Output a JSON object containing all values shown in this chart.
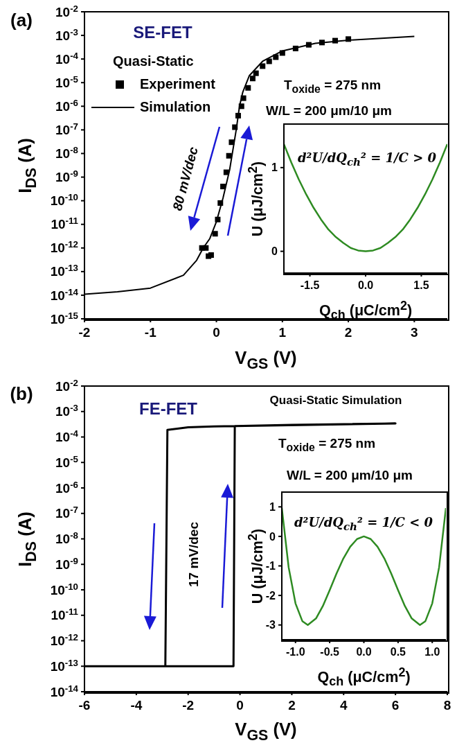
{
  "chart_data": [
    {
      "type": "line",
      "xlabel": "V$_{GS}$ (V)",
      "ylabel": "I$_{DS}$ (A)",
      "legend_title": "Quasi-Static",
      "legend": "top left",
      "log": "y",
      "annotations": [
        "(a)",
        "SE-FET",
        "T$_{oxide}$ = 275 nm",
        "W/L = 200 μm/10 μm",
        "80 mV/dec"
      ],
      "xlim": [
        -2,
        3.5
      ],
      "xticks": [
        -2,
        -1,
        0,
        1,
        2,
        3
      ],
      "ylim": [
        1e-15,
        0.01
      ],
      "yticks": [
        {
          "value": 1e-15,
          "label": "10$^{-15}$"
        },
        {
          "value": 1e-14,
          "label": "10$^{-14}$"
        },
        {
          "value": 1e-13,
          "label": "10$^{-13}$"
        },
        {
          "value": 1e-12,
          "label": "10$^{-12}$"
        },
        {
          "value": 1e-11,
          "label": "10$^{-11}$"
        },
        {
          "value": 1e-10,
          "label": "10$^{-10}$"
        },
        {
          "value": 1e-09,
          "label": "10$^{-9}$"
        },
        {
          "value": 1e-08,
          "label": "10$^{-8}$"
        },
        {
          "value": 1e-07,
          "label": "10$^{-7}$"
        },
        {
          "value": 1e-06,
          "label": "10$^{-6}$"
        },
        {
          "value": 1e-05,
          "label": "10$^{-5}$"
        },
        {
          "value": 0.0001,
          "label": "10$^{-4}$"
        },
        {
          "value": 0.001,
          "label": "10$^{-3}$"
        },
        {
          "value": 0.01,
          "label": "10$^{-2}$"
        }
      ],
      "series": [
        {
          "name": "Experiment",
          "type": "scatter",
          "marker": "square",
          "color": "#000000",
          "x": [
            -0.22,
            -0.16,
            -0.12,
            -0.08,
            -0.02,
            0.02,
            0.06,
            0.1,
            0.15,
            0.19,
            0.23,
            0.28,
            0.33,
            0.38,
            0.41,
            0.48,
            0.55,
            0.6,
            0.7,
            0.8,
            0.9,
            1.0,
            1.2,
            1.4,
            1.6,
            1.8,
            2.0
          ],
          "values": [
            1e-12,
            1e-12,
            4.5e-13,
            5e-13,
            4e-12,
            1.6e-11,
            8e-11,
            4e-10,
            1.6e-09,
            8e-09,
            3e-08,
            1.3e-07,
            4e-07,
            1e-06,
            2.2e-06,
            6e-06,
            1.5e-05,
            2.5e-05,
            5e-05,
            8e-05,
            0.00012,
            0.00018,
            0.00028,
            0.0004,
            0.0005,
            0.0006,
            0.0007
          ]
        },
        {
          "name": "Simulation",
          "marker": "none",
          "color": "#000000",
          "x": [
            -2,
            -1.5,
            -1,
            -0.5,
            -0.3,
            -0.2,
            -0.1,
            0,
            0.1,
            0.2,
            0.3,
            0.35,
            0.4,
            0.5,
            0.7,
            1,
            1.5,
            2,
            3
          ],
          "values": [
            1.1e-14,
            1.4e-14,
            2e-14,
            7e-14,
            3e-13,
            1e-12,
            2.5e-12,
            1.3e-11,
            1.3e-10,
            2e-09,
            1e-07,
            1e-06,
            4e-06,
            2e-05,
            8e-05,
            0.00022,
            0.00046,
            0.00063,
            0.00091
          ]
        }
      ]
    },
    {
      "type": "line",
      "xlabel": "Q$_{ch}$ (μC/cm$^{2}$)",
      "ylabel": "U (μJ/cm$^{2}$)",
      "annotations": [
        "d²U/dQ$_{ch}$² = 1/C > 0"
      ],
      "xlim": [
        -2.2,
        2.2
      ],
      "xticks": [
        -1.5,
        {
          "value": 0,
          "label": "0.0"
        },
        1.5
      ],
      "ylim": [
        -0.26,
        1.52
      ],
      "yticks": [
        0,
        1
      ],
      "series": [
        {
          "color": "#2e8b22",
          "x": [
            -2.2,
            -2.0,
            -1.8,
            -1.6,
            -1.4,
            -1.2,
            -1.0,
            -0.8,
            -0.6,
            -0.4,
            -0.2,
            0,
            0.2,
            0.4,
            0.6,
            0.8,
            1.0,
            1.2,
            1.4,
            1.6,
            1.8,
            2.0,
            2.2
          ],
          "values": [
            1.28,
            1.06,
            0.86,
            0.68,
            0.52,
            0.38,
            0.26,
            0.17,
            0.1,
            0.04,
            0.01,
            0,
            0.01,
            0.04,
            0.1,
            0.17,
            0.26,
            0.38,
            0.52,
            0.68,
            0.86,
            1.06,
            1.28
          ]
        }
      ]
    },
    {
      "type": "line",
      "xlabel": "V$_{GS}$ (V)",
      "ylabel": "I$_{DS}$ (A)",
      "log": "y",
      "annotations": [
        "(b)",
        "FE-FET",
        "Quasi-Static Simulation",
        "T$_{oxide}$ = 275 nm",
        "W/L = 200 μm/10 μm",
        "17 mV/dec"
      ],
      "xlim": [
        -6,
        8
      ],
      "xticks": [
        -6,
        -4,
        -2,
        0,
        2,
        4,
        6,
        8
      ],
      "ylim": [
        1e-14,
        0.01
      ],
      "yticks": [
        {
          "value": 1e-14,
          "label": "10$^{-14}$"
        },
        {
          "value": 1e-13,
          "label": "10$^{-13}$"
        },
        {
          "value": 1e-12,
          "label": "10$^{-12}$"
        },
        {
          "value": 1e-11,
          "label": "10$^{-11}$"
        },
        {
          "value": 1e-10,
          "label": "10$^{-10}$"
        },
        {
          "value": 1e-09,
          "label": "10$^{-9}$"
        },
        {
          "value": 1e-08,
          "label": "10$^{-8}$"
        },
        {
          "value": 1e-07,
          "label": "10$^{-7}$"
        },
        {
          "value": 1e-06,
          "label": "10$^{-6}$"
        },
        {
          "value": 1e-05,
          "label": "10$^{-5}$"
        },
        {
          "value": 0.0001,
          "label": "10$^{-4}$"
        },
        {
          "value": 0.001,
          "label": "10$^{-3}$"
        },
        {
          "value": 0.01,
          "label": "10$^{-2}$"
        }
      ],
      "series": [
        {
          "color": "#000000",
          "x": [
            -6,
            -0.25,
            -0.2,
            2,
            4,
            6,
            -0.2,
            -1,
            -2,
            -2.8,
            -2.88
          ],
          "values": [
            1e-13,
            1e-13,
            0.00027,
            0.0003,
            0.00032,
            0.00034,
            0.00027,
            0.00026,
            0.00024,
            0.00019,
            1e-13
          ]
        }
      ]
    },
    {
      "type": "line",
      "xlabel": "Q$_{ch}$ (μC/cm$^{2}$)",
      "ylabel": "U (μJ/cm$^{2}$)",
      "annotations": [
        "d²U/dQ$_{ch}$² = 1/C < 0"
      ],
      "xlim": [
        -1.2,
        1.2
      ],
      "xticks": [
        {
          "value": -1,
          "label": "-1.0"
        },
        -0.5,
        {
          "value": 0,
          "label": "0.0"
        },
        0.5,
        {
          "value": 1,
          "label": "1.0"
        }
      ],
      "ylim": [
        -3.5,
        1.5
      ],
      "yticks": [
        -3,
        -2,
        -1,
        0,
        1
      ],
      "series": [
        {
          "color": "#2e8b22",
          "x": [
            -1.2,
            -1.1,
            -1.0,
            -0.9,
            -0.82,
            -0.7,
            -0.6,
            -0.5,
            -0.4,
            -0.3,
            -0.2,
            -0.1,
            0,
            0.1,
            0.2,
            0.3,
            0.4,
            0.5,
            0.6,
            0.7,
            0.82,
            0.9,
            1.0,
            1.1,
            1.2
          ],
          "values": [
            0.96,
            -1.05,
            -2.27,
            -2.87,
            -3.0,
            -2.78,
            -2.36,
            -1.82,
            -1.26,
            -0.75,
            -0.35,
            -0.09,
            0,
            -0.09,
            -0.35,
            -0.75,
            -1.26,
            -1.82,
            -2.36,
            -2.78,
            -3.0,
            -2.87,
            -2.27,
            -1.05,
            0.96
          ]
        }
      ]
    }
  ]
}
